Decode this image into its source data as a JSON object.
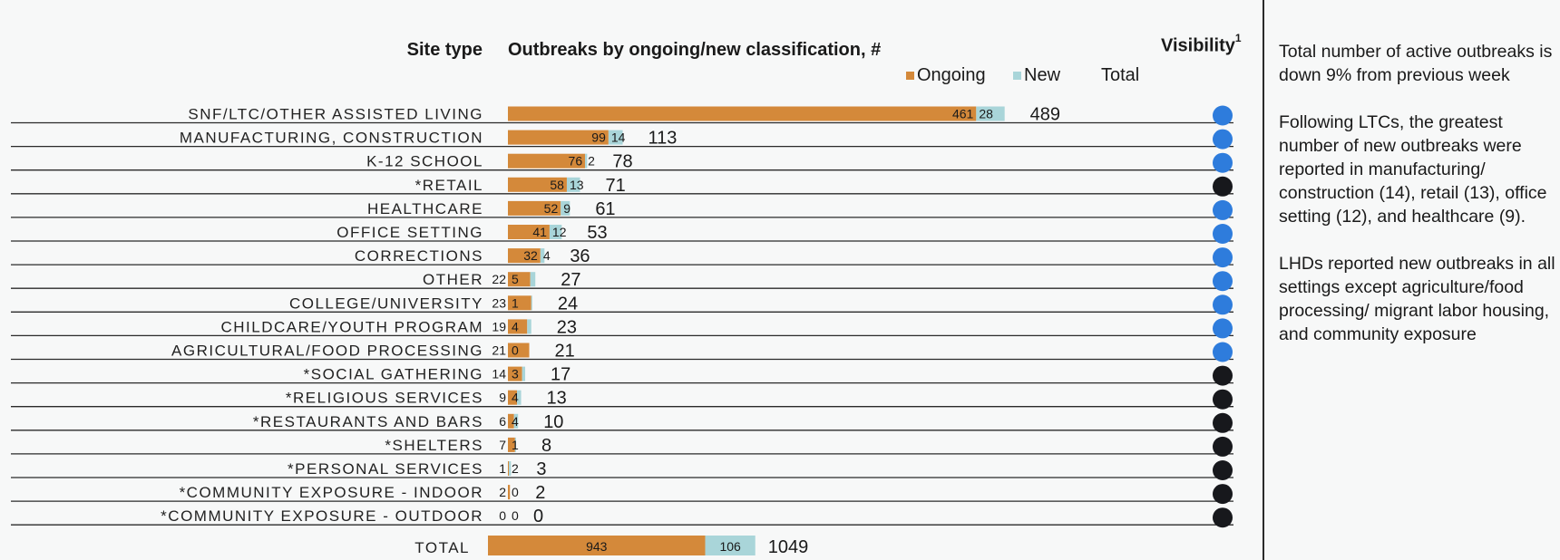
{
  "header": {
    "site_type": "Site type",
    "chart_title": "Outbreaks by ongoing/new classification, #",
    "visibility": "Visibility",
    "visibility_sup": "1"
  },
  "legend": {
    "ongoing": "Ongoing",
    "new": "New",
    "total": "Total"
  },
  "colors": {
    "ongoing": "#d4893a",
    "new": "#a9d5d9",
    "visibility_high": "#2e7cdc",
    "visibility_low": "#17181c",
    "rule": "#2a2a2a"
  },
  "chart_data": {
    "type": "bar",
    "orientation": "horizontal",
    "stacked": true,
    "categories": [
      "SNF/LTC/OTHER ASSISTED LIVING",
      "MANUFACTURING, CONSTRUCTION",
      "K-12 SCHOOL",
      "*RETAIL",
      "HEALTHCARE",
      "OFFICE SETTING",
      "CORRECTIONS",
      "OTHER",
      "COLLEGE/UNIVERSITY",
      "CHILDCARE/YOUTH PROGRAM",
      "AGRICULTURAL/FOOD PROCESSING",
      "*SOCIAL GATHERING",
      "*RELIGIOUS SERVICES",
      "*RESTAURANTS AND BARS",
      "*SHELTERS",
      "*PERSONAL SERVICES",
      "*COMMUNITY EXPOSURE - INDOOR",
      "*COMMUNITY EXPOSURE - OUTDOOR"
    ],
    "series": [
      {
        "name": "Ongoing",
        "values": [
          461,
          99,
          76,
          58,
          52,
          41,
          32,
          22,
          23,
          19,
          21,
          14,
          9,
          6,
          7,
          1,
          2,
          0
        ]
      },
      {
        "name": "New",
        "values": [
          28,
          14,
          2,
          13,
          9,
          12,
          4,
          5,
          1,
          4,
          0,
          3,
          4,
          4,
          1,
          2,
          0,
          0
        ]
      }
    ],
    "totals": [
      489,
      113,
      78,
      71,
      61,
      53,
      36,
      27,
      24,
      23,
      21,
      17,
      13,
      10,
      8,
      3,
      2,
      0
    ],
    "visibility": [
      "high",
      "high",
      "high",
      "low",
      "high",
      "high",
      "high",
      "high",
      "high",
      "high",
      "high",
      "low",
      "low",
      "low",
      "low",
      "low",
      "low",
      "low"
    ],
    "total_row": {
      "label": "TOTAL",
      "ongoing": 943,
      "new": 106,
      "total": 1049
    }
  },
  "notes": [
    "Total number of active outbreaks is down 9% from previous week",
    "Following LTCs, the greatest number of new outbreaks were reported in manufacturing/ construction (14), retail (13), office setting (12), and healthcare (9).",
    "LHDs reported new outbreaks in all settings except agriculture/food processing/ migrant labor housing, and community exposure"
  ]
}
